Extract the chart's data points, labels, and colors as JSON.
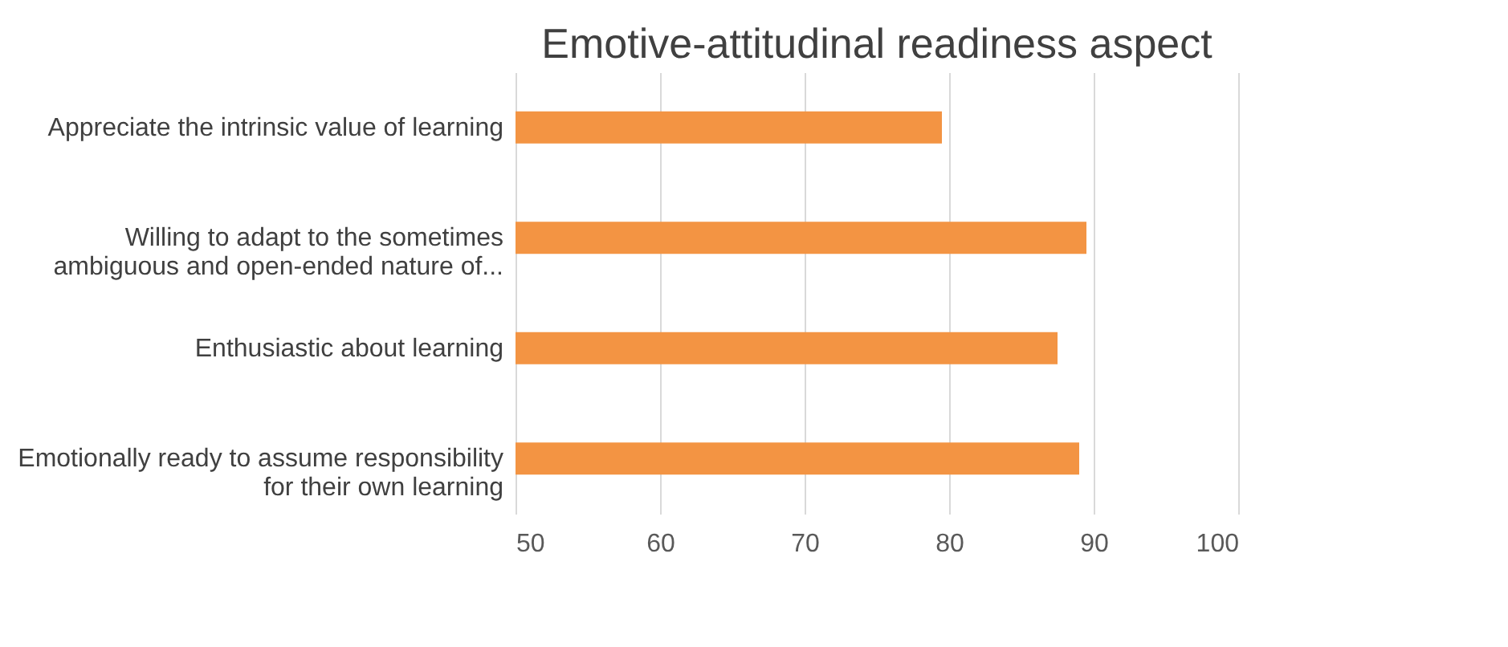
{
  "chart_data": {
    "type": "bar",
    "orientation": "horizontal",
    "title": "Emotive-attitudinal readiness aspect",
    "categories": [
      "Appreciate the intrinsic value of learning",
      "Willing to adapt to the sometimes\nambiguous and open-ended nature of...",
      "Enthusiastic about learning",
      "Emotionally ready to assume responsibility\nfor their own learning"
    ],
    "values": [
      79.5,
      89.5,
      87.5,
      89
    ],
    "color": "#f39443",
    "xlim": [
      50,
      100
    ],
    "xticks": [
      50,
      60,
      70,
      80,
      90,
      100
    ],
    "grid": "x"
  }
}
